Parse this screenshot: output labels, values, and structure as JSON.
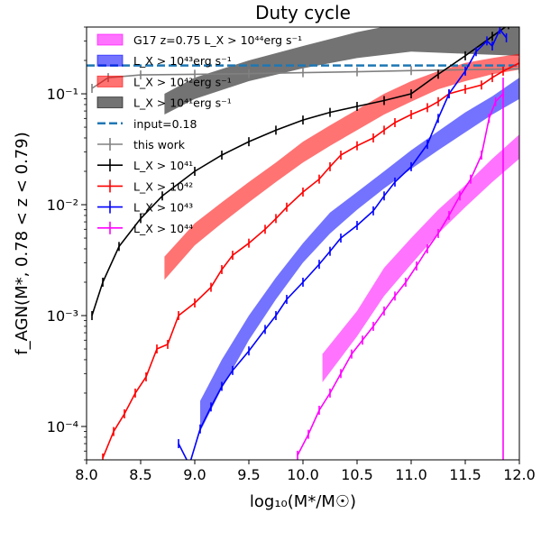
{
  "chart_data": {
    "type": "line",
    "title": "Duty cycle",
    "xlabel": "log₁₀(M*/M☉)",
    "ylabel": "f_AGN(M*, 0.78 < z < 0.79)",
    "xlim": [
      8.0,
      12.0
    ],
    "ylim": [
      5e-05,
      0.4
    ],
    "yscale": "log",
    "xticks": [
      "8.0",
      "8.5",
      "9.0",
      "9.5",
      "10.0",
      "10.5",
      "11.0",
      "11.5",
      "12.0"
    ],
    "yticks": [
      "10⁻⁴",
      "10⁻³",
      "10⁻²",
      "10⁻¹"
    ],
    "legend_position": "top-left",
    "legend": [
      {
        "label": "G17 z=0.75 L_X > 10⁴⁴erg s⁻¹",
        "style": "band",
        "color": "#ff00ff"
      },
      {
        "label": "L_X > 10⁴³erg s⁻¹",
        "style": "band",
        "color": "#0000ff"
      },
      {
        "label": "L_X > 10⁴²erg s⁻¹",
        "style": "band",
        "color": "#ff0000"
      },
      {
        "label": "L_X > 10⁴¹erg s⁻¹",
        "style": "band",
        "color": "#000000"
      },
      {
        "label": "input=0.18",
        "style": "dashed",
        "color": "#1f77b4"
      },
      {
        "label": "this work",
        "style": "errorbar",
        "color": "#808080"
      },
      {
        "label": "L_X > 10⁴¹",
        "style": "errorbar",
        "color": "#000000"
      },
      {
        "label": "L_X > 10⁴²",
        "style": "errorbar",
        "color": "#ff0000"
      },
      {
        "label": "L_X > 10⁴³",
        "style": "errorbar",
        "color": "#0000ff"
      },
      {
        "label": "L_X > 10⁴⁴",
        "style": "errorbar",
        "color": "#ff00ff"
      }
    ],
    "bands": [
      {
        "name": "L_X > 10⁴¹erg s⁻¹",
        "color": "#000000",
        "alpha": 0.55,
        "x": [
          8.72,
          9.0,
          9.5,
          10.0,
          10.5,
          11.0,
          11.5,
          12.0
        ],
        "low": [
          0.065,
          0.09,
          0.13,
          0.17,
          0.21,
          0.24,
          0.23,
          0.22
        ],
        "high": [
          0.1,
          0.14,
          0.2,
          0.27,
          0.36,
          0.45,
          0.48,
          0.5
        ]
      },
      {
        "name": "L_X > 10⁴²erg s⁻¹",
        "color": "#ff0000",
        "alpha": 0.55,
        "x": [
          8.72,
          9.0,
          9.25,
          9.5,
          9.75,
          10.0,
          10.25,
          10.5,
          10.75,
          11.0,
          11.25,
          11.5,
          11.75,
          12.0
        ],
        "low": [
          0.0021,
          0.0043,
          0.0068,
          0.0105,
          0.016,
          0.024,
          0.034,
          0.047,
          0.065,
          0.085,
          0.11,
          0.13,
          0.15,
          0.165
        ],
        "high": [
          0.0034,
          0.0068,
          0.0105,
          0.016,
          0.024,
          0.037,
          0.052,
          0.072,
          0.1,
          0.13,
          0.16,
          0.19,
          0.21,
          0.23
        ]
      },
      {
        "name": "L_X > 10⁴³erg s⁻¹",
        "color": "#0000ff",
        "alpha": 0.55,
        "x": [
          9.05,
          9.25,
          9.5,
          9.75,
          10.0,
          10.25,
          10.5,
          10.75,
          11.0,
          11.25,
          11.5,
          11.75,
          12.0
        ],
        "low": [
          9e-05,
          0.00022,
          0.0006,
          0.0014,
          0.003,
          0.0055,
          0.009,
          0.014,
          0.021,
          0.031,
          0.045,
          0.065,
          0.09
        ],
        "high": [
          0.00017,
          0.0004,
          0.001,
          0.0022,
          0.0045,
          0.0085,
          0.013,
          0.02,
          0.031,
          0.046,
          0.068,
          0.095,
          0.14
        ]
      },
      {
        "name": "G17 z=0.75 L_X > 10⁴⁴erg s⁻¹",
        "color": "#ff00ff",
        "alpha": 0.55,
        "x": [
          10.18,
          10.5,
          10.75,
          11.0,
          11.25,
          11.5,
          11.75,
          12.0
        ],
        "low": [
          0.00025,
          0.00065,
          0.0015,
          0.0029,
          0.0055,
          0.0095,
          0.016,
          0.026
        ],
        "high": [
          0.00045,
          0.0011,
          0.0027,
          0.005,
          0.009,
          0.015,
          0.026,
          0.043
        ]
      }
    ],
    "input_line": {
      "name": "input=0.18",
      "y": 0.18,
      "color": "#1f77b4"
    },
    "series": [
      {
        "name": "this work",
        "color": "#808080",
        "x": [
          8.05,
          8.2,
          8.5,
          9.0,
          9.5,
          10.0,
          10.5,
          11.0,
          11.5,
          12.0
        ],
        "y": [
          0.112,
          0.14,
          0.148,
          0.15,
          0.152,
          0.155,
          0.158,
          0.162,
          0.165,
          0.168
        ]
      },
      {
        "name": "L_X > 10⁴¹",
        "color": "#000000",
        "x": [
          8.05,
          8.15,
          8.3,
          8.5,
          8.7,
          9.0,
          9.25,
          9.5,
          9.75,
          10.0,
          10.25,
          10.5,
          10.75,
          11.0,
          11.25,
          11.5,
          11.75,
          11.9
        ],
        "y": [
          0.001,
          0.002,
          0.0042,
          0.0075,
          0.012,
          0.02,
          0.028,
          0.037,
          0.047,
          0.058,
          0.068,
          0.077,
          0.087,
          0.1,
          0.15,
          0.22,
          0.33,
          0.42
        ]
      },
      {
        "name": "L_X > 10⁴²",
        "color": "#ff0000",
        "x": [
          8.15,
          8.25,
          8.35,
          8.45,
          8.55,
          8.65,
          8.75,
          8.85,
          9.0,
          9.15,
          9.25,
          9.35,
          9.5,
          9.65,
          9.75,
          9.85,
          10.0,
          10.15,
          10.25,
          10.35,
          10.5,
          10.65,
          10.75,
          10.85,
          11.0,
          11.15,
          11.25,
          11.35,
          11.5,
          11.65,
          11.75,
          11.85,
          12.0
        ],
        "y": [
          5.2e-05,
          9e-05,
          0.00013,
          0.0002,
          0.00028,
          0.0005,
          0.00055,
          0.001,
          0.0013,
          0.0018,
          0.0026,
          0.0035,
          0.0045,
          0.006,
          0.0075,
          0.0095,
          0.013,
          0.017,
          0.022,
          0.028,
          0.034,
          0.04,
          0.047,
          0.055,
          0.065,
          0.075,
          0.085,
          0.1,
          0.11,
          0.12,
          0.14,
          0.16,
          0.19
        ]
      },
      {
        "name": "L_X > 10⁴³",
        "color": "#0000ff",
        "x": [
          8.85,
          8.95,
          9.05,
          9.15,
          9.25,
          9.35,
          9.5,
          9.65,
          9.75,
          9.85,
          10.0,
          10.15,
          10.25,
          10.35,
          10.5,
          10.65,
          10.75,
          10.85,
          11.0,
          11.15,
          11.25,
          11.35,
          11.5,
          11.6,
          11.7,
          11.75,
          11.82,
          11.88
        ],
        "y": [
          7e-05,
          4.5e-05,
          9.5e-05,
          0.00015,
          0.00023,
          0.00032,
          0.00048,
          0.00075,
          0.001,
          0.0014,
          0.002,
          0.0029,
          0.0038,
          0.005,
          0.0065,
          0.0088,
          0.012,
          0.016,
          0.022,
          0.035,
          0.06,
          0.1,
          0.16,
          0.24,
          0.3,
          0.27,
          0.38,
          0.32
        ]
      },
      {
        "name": "L_X > 10⁴⁴",
        "color": "#ff00ff",
        "x": [
          9.95,
          10.05,
          10.15,
          10.25,
          10.35,
          10.45,
          10.55,
          10.65,
          10.75,
          10.85,
          10.95,
          11.05,
          11.15,
          11.25,
          11.35,
          11.45,
          11.55,
          11.65,
          11.72,
          11.78,
          11.85
        ],
        "y": [
          5.5e-05,
          8.5e-05,
          0.00014,
          0.0002,
          0.0003,
          0.00045,
          0.0006,
          0.0008,
          0.0011,
          0.0015,
          0.002,
          0.0028,
          0.004,
          0.0055,
          0.008,
          0.012,
          0.017,
          0.028,
          0.06,
          0.085,
          0.1
        ]
      }
    ]
  }
}
